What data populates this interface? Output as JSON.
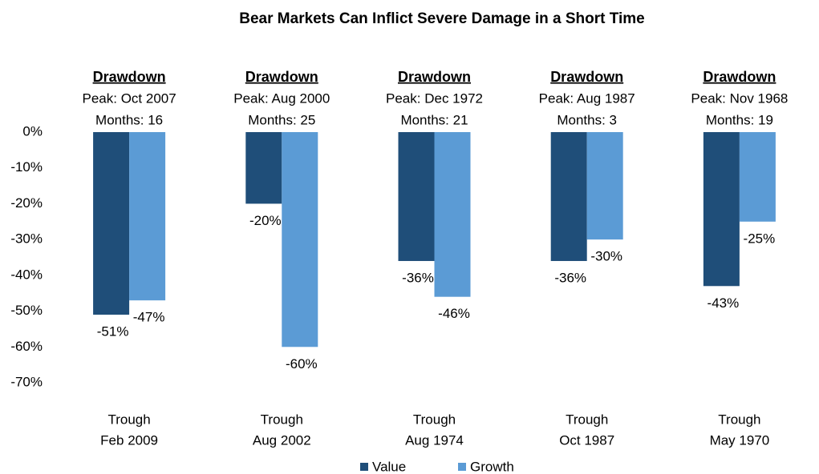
{
  "chart_data": {
    "type": "bar",
    "title": "Bear Markets Can Inflict Severe Damage in a Short Time",
    "annotations": [
      {
        "title": "Drawdown",
        "peak": "Peak: Oct 2007",
        "months": "Months: 16"
      },
      {
        "title": "Drawdown",
        "peak": "Peak: Aug 2000",
        "months": "Months: 25"
      },
      {
        "title": "Drawdown",
        "peak": "Peak: Dec 1972",
        "months": "Months: 21"
      },
      {
        "title": "Drawdown",
        "peak": "Peak: Aug 1987",
        "months": "Months: 3"
      },
      {
        "title": "Drawdown",
        "peak": "Peak: Nov 1968",
        "months": "Months: 19"
      }
    ],
    "categories": [
      [
        "Trough",
        "Feb 2009"
      ],
      [
        "Trough",
        "Aug 2002"
      ],
      [
        "Trough",
        "Aug 1974"
      ],
      [
        "Trough",
        "Oct 1987"
      ],
      [
        "Trough",
        "May 1970"
      ]
    ],
    "series": [
      {
        "name": "Value",
        "color": "#1f4e79",
        "values": [
          -51,
          -20,
          -36,
          -36,
          -43
        ],
        "value_labels": [
          "-51%",
          "-20%",
          "-36%",
          "-36%",
          "-43%"
        ]
      },
      {
        "name": "Growth",
        "color": "#5b9bd5",
        "values": [
          -47,
          -60,
          -46,
          -30,
          -25
        ],
        "value_labels": [
          "-47%",
          "-60%",
          "-46%",
          "-30%",
          "-25%"
        ]
      }
    ],
    "ylim": [
      -70,
      0
    ],
    "yticks": [
      {
        "value": 0,
        "label": "0%"
      },
      {
        "value": -10,
        "label": "-10%"
      },
      {
        "value": -20,
        "label": "-20%"
      },
      {
        "value": -30,
        "label": "-30%"
      },
      {
        "value": -40,
        "label": "-40%"
      },
      {
        "value": -50,
        "label": "-50%"
      },
      {
        "value": -60,
        "label": "-60%"
      },
      {
        "value": -70,
        "label": "-70%"
      }
    ],
    "grid": false,
    "legend": "bottom"
  }
}
